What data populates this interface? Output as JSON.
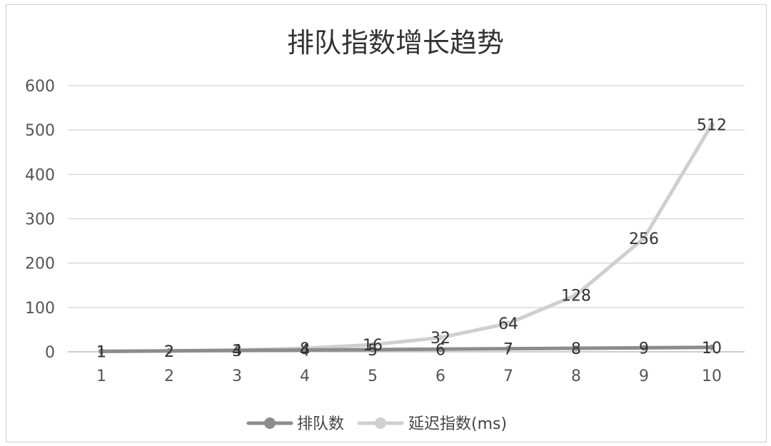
{
  "chart_data": {
    "type": "line",
    "title": "排队指数增长趋势",
    "categories": [
      "1",
      "2",
      "3",
      "4",
      "5",
      "6",
      "7",
      "8",
      "9",
      "10"
    ],
    "ylim": [
      0,
      600
    ],
    "yticks": [
      0,
      100,
      200,
      300,
      400,
      500,
      600
    ],
    "grid": true,
    "legend_position": "bottom",
    "series": [
      {
        "name": "排队数",
        "values": [
          1,
          2,
          3,
          4,
          5,
          6,
          7,
          8,
          9,
          10
        ],
        "color": "#8c8c8c"
      },
      {
        "name": "延迟指数(ms)",
        "values": [
          1,
          2,
          4,
          8,
          16,
          32,
          64,
          128,
          256,
          512
        ],
        "color": "#cfcfcf"
      }
    ]
  }
}
